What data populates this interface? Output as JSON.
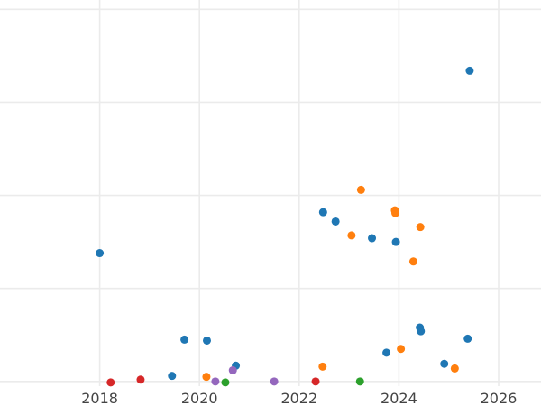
{
  "chart_data": {
    "type": "scatter",
    "title": "",
    "xlabel": "",
    "ylabel": "",
    "grid": true,
    "xlim": [
      2016.0,
      2026.85
    ],
    "ylim": [
      -0.05,
      4.1
    ],
    "x_ticks": [
      2018,
      2020,
      2022,
      2024,
      2026
    ],
    "x_tick_labels": [
      "2018",
      "2020",
      "2022",
      "2024",
      "2026"
    ],
    "y_gridlines": [
      0,
      1,
      2,
      3,
      4
    ],
    "series": [
      {
        "color": "#1f77b4",
        "points": [
          {
            "x": 2018.0,
            "y": 1.38
          },
          {
            "x": 2019.45,
            "y": 0.06
          },
          {
            "x": 2019.7,
            "y": 0.45
          },
          {
            "x": 2020.15,
            "y": 0.44
          },
          {
            "x": 2020.73,
            "y": 0.17
          },
          {
            "x": 2022.48,
            "y": 1.82
          },
          {
            "x": 2022.73,
            "y": 1.72
          },
          {
            "x": 2023.46,
            "y": 1.54
          },
          {
            "x": 2023.75,
            "y": 0.31
          },
          {
            "x": 2023.94,
            "y": 1.5
          },
          {
            "x": 2024.42,
            "y": 0.58
          },
          {
            "x": 2024.44,
            "y": 0.54
          },
          {
            "x": 2024.91,
            "y": 0.19
          },
          {
            "x": 2025.38,
            "y": 0.46
          },
          {
            "x": 2025.42,
            "y": 3.34
          }
        ]
      },
      {
        "color": "#ff7f0e",
        "points": [
          {
            "x": 2020.14,
            "y": 0.05
          },
          {
            "x": 2022.47,
            "y": 0.16
          },
          {
            "x": 2023.05,
            "y": 1.57
          },
          {
            "x": 2023.24,
            "y": 2.06
          },
          {
            "x": 2023.92,
            "y": 1.84
          },
          {
            "x": 2023.93,
            "y": 1.81
          },
          {
            "x": 2024.04,
            "y": 0.35
          },
          {
            "x": 2024.29,
            "y": 1.29
          },
          {
            "x": 2024.43,
            "y": 1.66
          },
          {
            "x": 2025.12,
            "y": 0.14
          }
        ]
      },
      {
        "color": "#2ca02c",
        "points": [
          {
            "x": 2020.52,
            "y": -0.01
          },
          {
            "x": 2023.22,
            "y": 0.0
          }
        ]
      },
      {
        "color": "#d62728",
        "points": [
          {
            "x": 2018.22,
            "y": -0.01
          },
          {
            "x": 2018.82,
            "y": 0.02
          },
          {
            "x": 2022.33,
            "y": 0.0
          }
        ]
      },
      {
        "color": "#9467bd",
        "points": [
          {
            "x": 2020.32,
            "y": 0.0
          },
          {
            "x": 2020.67,
            "y": 0.12
          },
          {
            "x": 2021.5,
            "y": 0.0
          }
        ]
      }
    ]
  }
}
